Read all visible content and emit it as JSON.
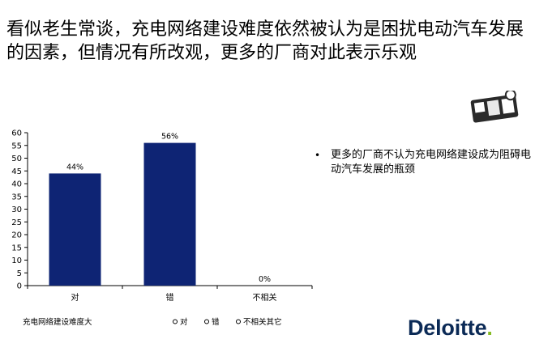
{
  "slide": {
    "title": "看似老生常谈，充电网络建设难度依然被认为是困扰电动汽车发展的因素，但情况有所改观，更多的厂商对此表示乐观",
    "bullet": "更多的厂商不认为充电网络建设成为阻碍电动汽车发展的瓶颈",
    "brand_name": "Deloitte",
    "brand_dot": "."
  },
  "chart_data": {
    "type": "bar",
    "categories": [
      "对",
      "错",
      "不相关"
    ],
    "values": [
      44,
      56,
      0
    ],
    "data_labels": [
      "44%",
      "56%",
      "0%"
    ],
    "ylim": [
      0,
      60
    ],
    "yticks": [
      0,
      5,
      10,
      15,
      20,
      25,
      30,
      35,
      40,
      45,
      50,
      55,
      60
    ],
    "xlabel": "充电网络建设难度大",
    "legend": [
      "对",
      "错",
      "不相关其它"
    ],
    "legend_position": "bottom",
    "bar_color": "#0e2474",
    "grid": false
  }
}
